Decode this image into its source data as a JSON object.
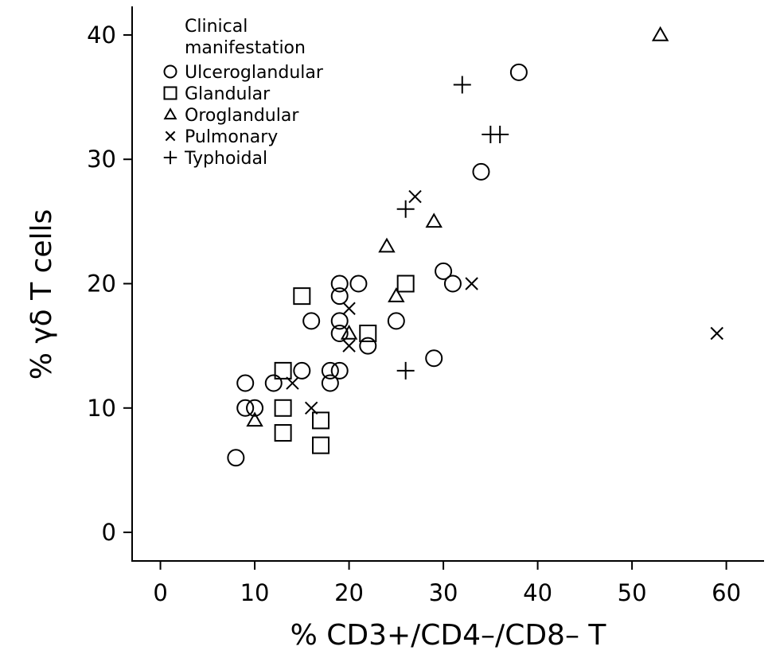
{
  "chart_data": {
    "type": "scatter",
    "title": "",
    "xlabel": "% CD3+/CD4–/CD8– T",
    "ylabel": "% γδ T cells",
    "xlim": [
      -3,
      64
    ],
    "ylim": [
      -2.3,
      42.3
    ],
    "xticks": [
      0,
      10,
      20,
      30,
      40,
      50,
      60
    ],
    "yticks": [
      0,
      10,
      20,
      30,
      40
    ],
    "grid": false,
    "legend": {
      "title_line1": "Clinical",
      "title_line2": "manifestation",
      "placement": "top-left"
    },
    "series": [
      {
        "name": "Ulceroglandular",
        "marker": "circle",
        "points": [
          [
            8,
            6
          ],
          [
            9,
            10
          ],
          [
            10,
            10
          ],
          [
            9,
            12
          ],
          [
            12,
            12
          ],
          [
            15,
            13
          ],
          [
            18,
            13
          ],
          [
            19,
            13
          ],
          [
            18,
            12
          ],
          [
            16,
            17
          ],
          [
            19,
            17
          ],
          [
            19,
            16
          ],
          [
            19,
            19
          ],
          [
            19,
            20
          ],
          [
            21,
            20
          ],
          [
            22,
            15
          ],
          [
            25,
            17
          ],
          [
            29,
            14
          ],
          [
            30,
            21
          ],
          [
            31,
            20
          ],
          [
            34,
            29
          ],
          [
            38,
            37
          ]
        ]
      },
      {
        "name": "Glandular",
        "marker": "square",
        "points": [
          [
            13,
            13
          ],
          [
            13,
            10
          ],
          [
            13,
            8
          ],
          [
            17,
            9
          ],
          [
            17,
            7
          ],
          [
            15,
            19
          ],
          [
            22,
            16
          ],
          [
            26,
            20
          ]
        ]
      },
      {
        "name": "Oroglandular",
        "marker": "triangle",
        "points": [
          [
            10,
            9
          ],
          [
            20,
            16
          ],
          [
            24,
            23
          ],
          [
            25,
            19
          ],
          [
            29,
            25
          ],
          [
            53,
            40
          ]
        ]
      },
      {
        "name": "Pulmonary",
        "marker": "x",
        "points": [
          [
            14,
            12
          ],
          [
            16,
            10
          ],
          [
            20,
            18
          ],
          [
            20,
            15
          ],
          [
            27,
            27
          ],
          [
            33,
            20
          ],
          [
            59,
            16
          ]
        ]
      },
      {
        "name": "Typhoidal",
        "marker": "plus",
        "points": [
          [
            26,
            26
          ],
          [
            26,
            13
          ],
          [
            32,
            36
          ],
          [
            35,
            32
          ],
          [
            36,
            32
          ]
        ]
      }
    ]
  }
}
